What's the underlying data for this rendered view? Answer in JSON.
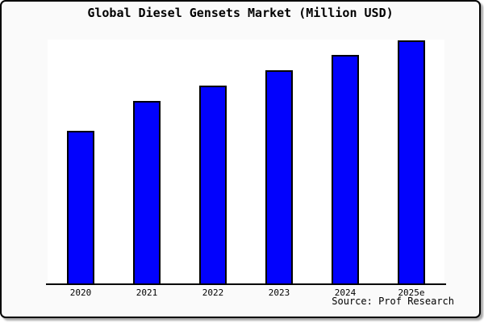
{
  "window": {
    "background": "#fafafa",
    "frame_border_color": "#000000",
    "shadow_color": "#6e6e6e"
  },
  "chart_data": {
    "type": "bar",
    "title": "Global Diesel Gensets Market (Million USD)",
    "categories": [
      "2020",
      "2021",
      "2022",
      "2023",
      "2024",
      "2025e"
    ],
    "values": [
      190,
      227,
      246,
      265,
      284,
      302
    ],
    "xlabel": "",
    "ylabel": "",
    "ylim": [
      0,
      303
    ],
    "value_scale_note": "no y-axis ticks or gridlines shown; values are relative bar heights estimated from pixels",
    "bar_color": "#0202fd",
    "bar_border_color": "#000000",
    "plot_background": "#ffffff",
    "axis_color": "#000000",
    "gridlines": false,
    "legend": false,
    "y_axis_visible": false,
    "source_label": "Source: Prof Research"
  }
}
